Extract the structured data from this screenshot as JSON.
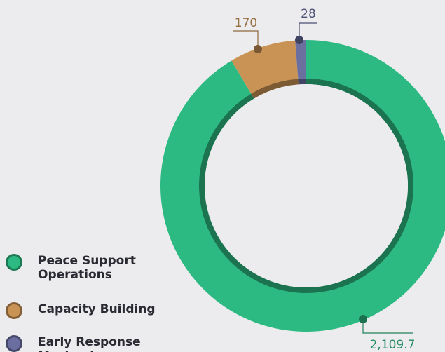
{
  "chart_data": {
    "type": "donut",
    "categories": [
      "Peace Support Operations",
      "Capacity Building",
      "Early Response Mechanism"
    ],
    "values": [
      2109.7,
      170,
      28
    ],
    "value_labels": [
      "2,109.7",
      "170",
      "28"
    ],
    "colors": [
      "#2dba82",
      "#c99355",
      "#6a6fa0"
    ],
    "legend": "bottom-left"
  }
}
